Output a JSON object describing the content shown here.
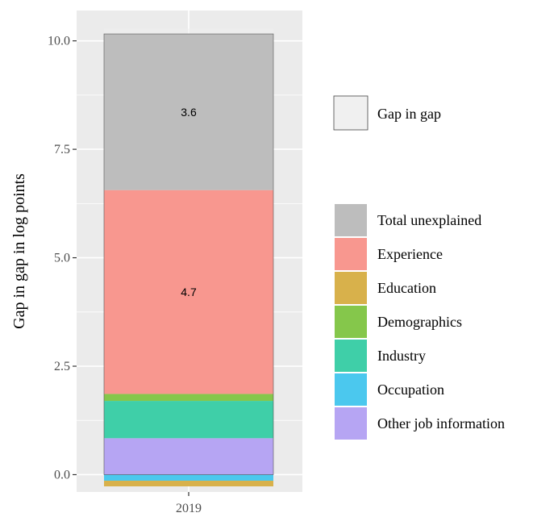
{
  "chart_data": {
    "type": "bar",
    "stacked": true,
    "categories": [
      "2019"
    ],
    "xlabel": "",
    "ylabel": "Gap in gap in log points",
    "ylim": [
      -0.4,
      10.7
    ],
    "yticks": [
      0.0,
      2.5,
      5.0,
      7.5,
      10.0
    ],
    "ytick_labels": [
      "0.0",
      "2.5",
      "5.0",
      "7.5",
      "10.0"
    ],
    "grid": true,
    "series": [
      {
        "name": "Total unexplained",
        "values": [
          3.6
        ],
        "color": "#bdbdbd",
        "label": "3.6"
      },
      {
        "name": "Experience",
        "values": [
          4.7
        ],
        "color": "#f8978f",
        "label": "4.7"
      },
      {
        "name": "Education",
        "values": [
          -0.13
        ],
        "color": "#d8b14b"
      },
      {
        "name": "Demographics",
        "values": [
          0.16
        ],
        "color": "#85c74b"
      },
      {
        "name": "Industry",
        "values": [
          0.86
        ],
        "color": "#3fcfa8"
      },
      {
        "name": "Occupation",
        "values": [
          -0.14
        ],
        "color": "#4bc8ee"
      },
      {
        "name": "Other job information",
        "values": [
          0.84
        ],
        "color": "#b6a5f3"
      }
    ],
    "gap_in_gap": {
      "name": "Gap in gap",
      "value": 10.28,
      "color": "#f0f0f0"
    },
    "legend_position": "right"
  }
}
